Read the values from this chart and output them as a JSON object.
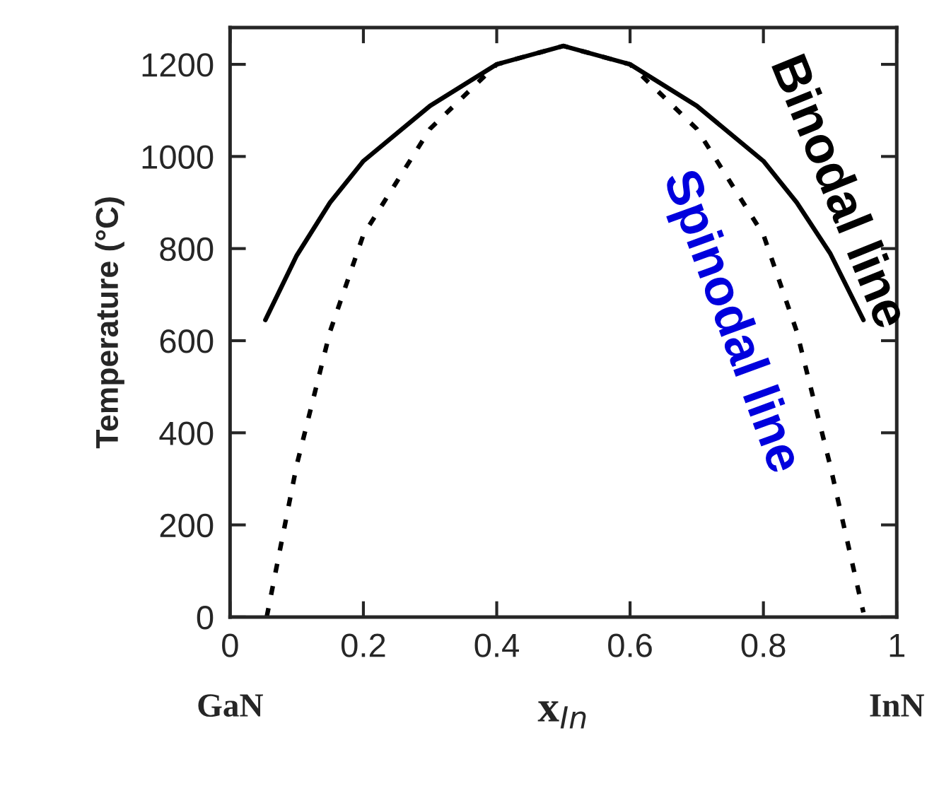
{
  "chart_data": {
    "type": "line",
    "xlabel": "x$_{In}$",
    "ylabel": "Temperature (°C)",
    "xlim": [
      0,
      1
    ],
    "ylim": [
      0,
      1280
    ],
    "xticks": [
      0,
      0.2,
      0.4,
      0.6,
      0.8,
      1
    ],
    "yticks": [
      0,
      200,
      400,
      600,
      800,
      1000,
      1200
    ],
    "grid": false,
    "legend": false,
    "series": [
      {
        "name": "Binodal line",
        "color": "#000000",
        "line_style": "solid",
        "x": [
          0.053,
          0.1,
          0.15,
          0.2,
          0.3,
          0.4,
          0.5,
          0.6,
          0.7,
          0.8,
          0.85,
          0.9,
          0.95
        ],
        "values": [
          645,
          785,
          900,
          990,
          1110,
          1200,
          1240,
          1200,
          1110,
          990,
          900,
          790,
          645
        ]
      },
      {
        "name": "Spinodal line",
        "color": "#000000",
        "line_style": "dotted",
        "x": [
          0.055,
          0.1,
          0.15,
          0.2,
          0.3,
          0.4,
          0.5,
          0.6,
          0.7,
          0.8,
          0.85,
          0.9,
          0.95
        ],
        "values": [
          0,
          330,
          620,
          830,
          1060,
          1200,
          1240,
          1200,
          1060,
          830,
          620,
          330,
          10
        ]
      }
    ],
    "annotations": [
      "GaN",
      "InN"
    ]
  }
}
